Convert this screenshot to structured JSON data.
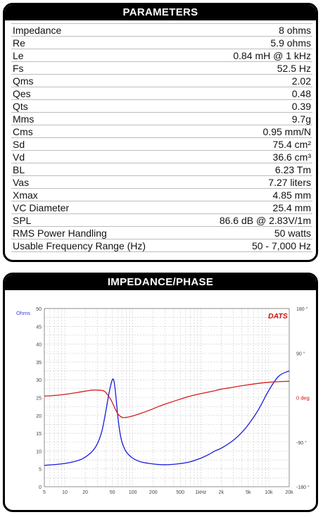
{
  "parameters": {
    "title": "PARAMETERS",
    "rows": [
      {
        "label": "Impedance",
        "value": "8 ohms"
      },
      {
        "label": "Re",
        "value": "5.9 ohms"
      },
      {
        "label": "Le",
        "value": "0.84 mH @ 1 kHz"
      },
      {
        "label": "Fs",
        "value": "52.5 Hz"
      },
      {
        "label": "Qms",
        "value": "2.02"
      },
      {
        "label": "Qes",
        "value": "0.48"
      },
      {
        "label": "Qts",
        "value": "0.39"
      },
      {
        "label": "Mms",
        "value": "9.7g"
      },
      {
        "label": "Cms",
        "value": "0.95 mm/N"
      },
      {
        "label": "Sd",
        "value": "75.4 cm²"
      },
      {
        "label": "Vd",
        "value": "36.6 cm³"
      },
      {
        "label": "BL",
        "value": "6.23 Tm"
      },
      {
        "label": "Vas",
        "value": "7.27 liters"
      },
      {
        "label": "Xmax",
        "value": "4.85 mm"
      },
      {
        "label": "VC Diameter",
        "value": "25.4 mm"
      },
      {
        "label": "SPL",
        "value": "86.6 dB @ 2.83V/1m"
      },
      {
        "label": "RMS Power Handling",
        "value": "50 watts"
      },
      {
        "label": "Usable Frequency Range (Hz)",
        "value": "50 - 7,000 Hz"
      }
    ]
  },
  "chart_data": {
    "type": "line",
    "title": "IMPEDANCE/PHASE",
    "brand": "DATS",
    "xscale": "log",
    "xlim": [
      5,
      20000
    ],
    "ylim": [
      0,
      50
    ],
    "y2lim": [
      -180,
      180
    ],
    "ylabel": "Ohms",
    "y2_unit_label": "0 deg",
    "grid": true,
    "colors": {
      "impedance": "#1a1adb",
      "phase": "#d81b1b",
      "axis_text": "#3b3bd8",
      "phase_text": "#cc1111"
    },
    "x_ticks": [
      {
        "value": 5,
        "label": "5"
      },
      {
        "value": 10,
        "label": "10"
      },
      {
        "value": 20,
        "label": "20"
      },
      {
        "value": 50,
        "label": "50"
      },
      {
        "value": 100,
        "label": "100"
      },
      {
        "value": 200,
        "label": "200"
      },
      {
        "value": 500,
        "label": "500"
      },
      {
        "value": 1000,
        "label": "1kHz"
      },
      {
        "value": 2000,
        "label": "2k"
      },
      {
        "value": 5000,
        "label": "5k"
      },
      {
        "value": 10000,
        "label": "10k"
      },
      {
        "value": 20000,
        "label": "20k"
      }
    ],
    "y_ticks": [
      0,
      5,
      10,
      15,
      20,
      25,
      30,
      35,
      40,
      45,
      50
    ],
    "y2_ticks": [
      {
        "value": 180,
        "label": "180 °"
      },
      {
        "value": 90,
        "label": "90 °"
      },
      {
        "value": -90,
        "label": "-90 °"
      },
      {
        "value": -180,
        "label": "-180 °"
      }
    ],
    "series": [
      {
        "key": "impedance",
        "axis": "y",
        "x": [
          5,
          8,
          12,
          18,
          25,
          30,
          35,
          40,
          45,
          50,
          53,
          56,
          60,
          65,
          70,
          80,
          100,
          130,
          180,
          250,
          350,
          500,
          700,
          1000,
          1300,
          1600,
          2000,
          3000,
          4000,
          5000,
          7000,
          10000,
          14000,
          20000
        ],
        "values": [
          6.0,
          6.3,
          6.8,
          7.8,
          9.8,
          12.0,
          15.5,
          21.0,
          26.5,
          30.0,
          29.5,
          26.0,
          20.0,
          15.0,
          12.3,
          9.8,
          8.0,
          7.0,
          6.5,
          6.2,
          6.2,
          6.5,
          7.0,
          8.0,
          9.0,
          10.0,
          10.8,
          13.0,
          15.2,
          17.4,
          21.5,
          27.0,
          31.0,
          32.5
        ]
      },
      {
        "key": "phase",
        "axis": "y2",
        "x": [
          5,
          8,
          12,
          18,
          25,
          32,
          38,
          43,
          48,
          52,
          56,
          62,
          70,
          80,
          100,
          130,
          180,
          250,
          350,
          500,
          700,
          1000,
          1500,
          2000,
          3000,
          5000,
          10000,
          20000
        ],
        "values": [
          3,
          5,
          8,
          12,
          15,
          15,
          13,
          5,
          -5,
          -15,
          -25,
          -35,
          -40,
          -40,
          -37,
          -32,
          -25,
          -17,
          -10,
          -3,
          3,
          8,
          13,
          17,
          21,
          26,
          31,
          33
        ]
      }
    ]
  }
}
